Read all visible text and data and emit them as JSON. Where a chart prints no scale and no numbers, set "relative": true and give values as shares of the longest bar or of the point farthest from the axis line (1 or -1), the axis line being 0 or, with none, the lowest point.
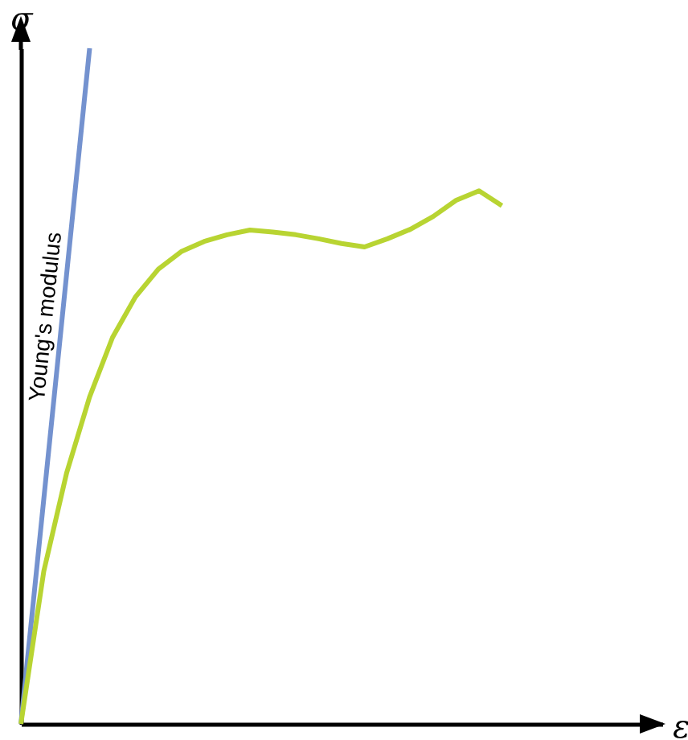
{
  "chart_data": {
    "type": "line",
    "relative": true,
    "xlabel": "ε",
    "ylabel": "σ",
    "tick_labels": false,
    "grid": false,
    "legend": false,
    "marker": "none",
    "line_style": "solid",
    "categories": [
      null,
      null,
      null,
      null,
      null,
      null,
      null,
      null,
      null,
      null,
      null,
      null,
      null,
      null,
      null,
      null,
      null,
      null,
      null,
      null,
      null,
      null,
      null,
      null,
      null,
      null,
      null,
      null,
      null
    ],
    "series": [
      {
        "name": "Young's modulus",
        "color": "#7492cf",
        "values": [
          0,
          0.333,
          0.667,
          1,
          null,
          null,
          null,
          null,
          null,
          null,
          null,
          null,
          null,
          null,
          null,
          null,
          null,
          null,
          null,
          null,
          null,
          null,
          null,
          null,
          null,
          null,
          null,
          null,
          null
        ]
      },
      {
        "color": "#b8d432",
        "values": [
          0,
          0.226,
          0.372,
          0.484,
          0.572,
          0.632,
          0.673,
          0.699,
          0.714,
          0.724,
          0.731,
          0.728,
          0.724,
          0.718,
          0.711,
          0.706,
          0.718,
          0.732,
          0.751,
          0.775,
          0.789,
          0.767,
          null,
          null,
          null,
          null,
          null,
          null,
          null
        ]
      }
    ]
  }
}
